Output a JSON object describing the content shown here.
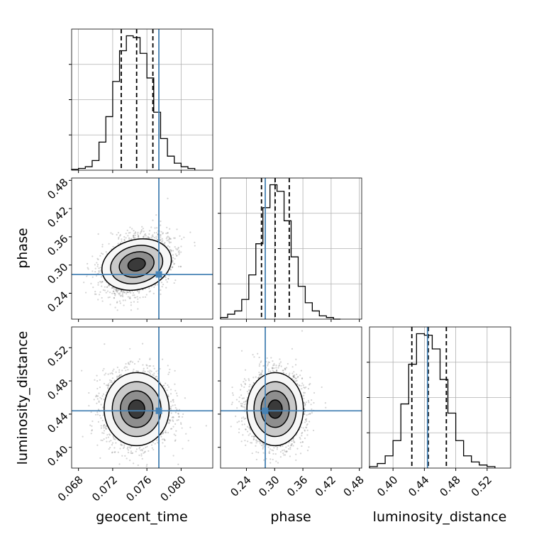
{
  "colors": {
    "truth": "#4682b4",
    "hist": "#000000",
    "grid": "#b0b0b0",
    "scatter": "#666666"
  },
  "chart_data": [
    {
      "type": "histogram",
      "panel": "geocent_time-marginal",
      "xlabel": "",
      "xlim": [
        0.0672,
        0.0837
      ],
      "bin_edges": [
        0.0672,
        0.068,
        0.0688,
        0.0696,
        0.0704,
        0.0712,
        0.072,
        0.0728,
        0.0736,
        0.0744,
        0.0752,
        0.076,
        0.0768,
        0.0776,
        0.0784,
        0.0792,
        0.08,
        0.0808,
        0.0816
      ],
      "counts": [
        0.5,
        1.0,
        2.0,
        5.5,
        16.0,
        30.5,
        50.5,
        68.0,
        76.5,
        75.5,
        66.5,
        52.5,
        33.0,
        18.0,
        8.0,
        4.0,
        2.0,
        1.0
      ],
      "quantiles": [
        0.073,
        0.0748,
        0.0767
      ],
      "truth": 0.0774,
      "xticks": [
        0.068,
        0.072,
        0.076,
        0.08
      ],
      "xticklabels": [
        "0.068",
        "0.072",
        "0.076",
        "0.080"
      ],
      "grid": true
    },
    {
      "type": "histogram",
      "panel": "phase-marginal",
      "xlabel": "",
      "xlim": [
        0.185,
        0.485
      ],
      "bin_edges": [
        0.185,
        0.2,
        0.215,
        0.23,
        0.245,
        0.26,
        0.275,
        0.29,
        0.305,
        0.32,
        0.335,
        0.35,
        0.365,
        0.38,
        0.395,
        0.41,
        0.425,
        0.44
      ],
      "counts": [
        1,
        3,
        5,
        12,
        27,
        46,
        68,
        82,
        78,
        60,
        38,
        20,
        10,
        5,
        2,
        1,
        0
      ],
      "quantiles": [
        0.272,
        0.301,
        0.331
      ],
      "truth": 0.28,
      "xticks": [
        0.24,
        0.3,
        0.36,
        0.42,
        0.48
      ],
      "xticklabels": [
        "0.24",
        "0.30",
        "0.36",
        "0.42",
        "0.48"
      ],
      "grid": true
    },
    {
      "type": "histogram",
      "panel": "luminosity_distance-marginal",
      "xlabel": "luminosity_distance",
      "xlim": [
        0.37,
        0.55
      ],
      "bin_edges": [
        0.37,
        0.38,
        0.39,
        0.4,
        0.41,
        0.42,
        0.43,
        0.44,
        0.45,
        0.46,
        0.47,
        0.48,
        0.49,
        0.5,
        0.51,
        0.52,
        0.53
      ],
      "counts": [
        1,
        3,
        8,
        18,
        42,
        68,
        88,
        87,
        78,
        58,
        36,
        18,
        8,
        4,
        2,
        1
      ],
      "quantiles": [
        0.424,
        0.445,
        0.468
      ],
      "truth": 0.444,
      "xticks": [
        0.4,
        0.44,
        0.48,
        0.52
      ],
      "xticklabels": [
        "0.40",
        "0.44",
        "0.48",
        "0.52"
      ],
      "grid": true
    },
    {
      "type": "scatter",
      "panel": "geocent_time-vs-phase",
      "xlim": [
        0.0672,
        0.0837
      ],
      "ylim": [
        0.185,
        0.485
      ],
      "center": [
        0.0748,
        0.301
      ],
      "spread": [
        0.0019,
        0.03
      ],
      "correlation": 0.35,
      "truth": [
        0.0774,
        0.28
      ],
      "yticks": [
        0.24,
        0.3,
        0.36,
        0.42,
        0.48
      ],
      "yticklabels": [
        "0.24",
        "0.30",
        "0.36",
        "0.42",
        "0.48"
      ],
      "ylabel": "phase"
    },
    {
      "type": "scatter",
      "panel": "geocent_time-vs-luminosity_distance",
      "xlim": [
        0.0672,
        0.0837
      ],
      "ylim": [
        0.375,
        0.545
      ],
      "center": [
        0.0748,
        0.446
      ],
      "spread": [
        0.0019,
        0.022
      ],
      "correlation": 0.0,
      "truth": [
        0.0774,
        0.444
      ],
      "xticks": [
        0.068,
        0.072,
        0.076,
        0.08
      ],
      "xticklabels": [
        "0.068",
        "0.072",
        "0.076",
        "0.080"
      ],
      "yticks": [
        0.4,
        0.44,
        0.48,
        0.52
      ],
      "yticklabels": [
        "0.40",
        "0.44",
        "0.48",
        "0.52"
      ],
      "xlabel": "geocent_time",
      "ylabel": "luminosity_distance"
    },
    {
      "type": "scatter",
      "panel": "phase-vs-luminosity_distance",
      "xlim": [
        0.185,
        0.485
      ],
      "ylim": [
        0.375,
        0.545
      ],
      "center": [
        0.301,
        0.446
      ],
      "spread": [
        0.03,
        0.022
      ],
      "correlation": 0.0,
      "truth": [
        0.28,
        0.444
      ],
      "xticks": [
        0.24,
        0.3,
        0.36,
        0.42,
        0.48
      ],
      "xticklabels": [
        "0.24",
        "0.30",
        "0.36",
        "0.42",
        "0.48"
      ],
      "xlabel": "phase"
    }
  ]
}
